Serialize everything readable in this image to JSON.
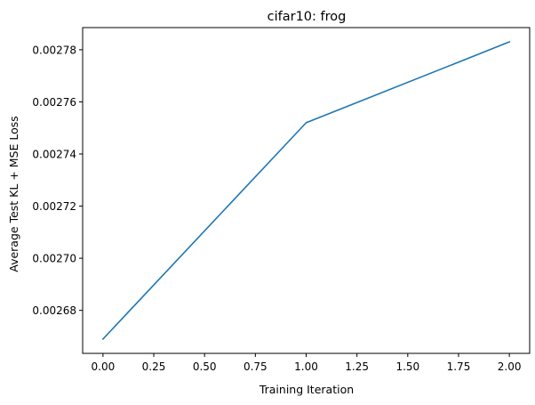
{
  "chart_data": {
    "type": "line",
    "title": "cifar10: frog",
    "xlabel": "Training Iteration",
    "ylabel": "Average Test KL + MSE Loss",
    "x": [
      0,
      1,
      2
    ],
    "series": [
      {
        "values": [
          0.002669,
          0.002752,
          0.002783
        ],
        "color": "#1f77b4"
      }
    ],
    "xlim": [
      -0.1,
      2.1
    ],
    "ylim": [
      0.0026635,
      0.0027885
    ],
    "xticks": [
      0.0,
      0.25,
      0.5,
      0.75,
      1.0,
      1.25,
      1.5,
      1.75,
      2.0
    ],
    "xtick_labels": [
      "0.00",
      "0.25",
      "0.50",
      "0.75",
      "1.00",
      "1.25",
      "1.50",
      "1.75",
      "2.00"
    ],
    "yticks": [
      0.00268,
      0.0027,
      0.00272,
      0.00274,
      0.00276,
      0.00278
    ],
    "ytick_labels": [
      "0.00268",
      "0.00270",
      "0.00272",
      "0.00274",
      "0.00276",
      "0.00278"
    ],
    "grid": false,
    "legend": false
  }
}
